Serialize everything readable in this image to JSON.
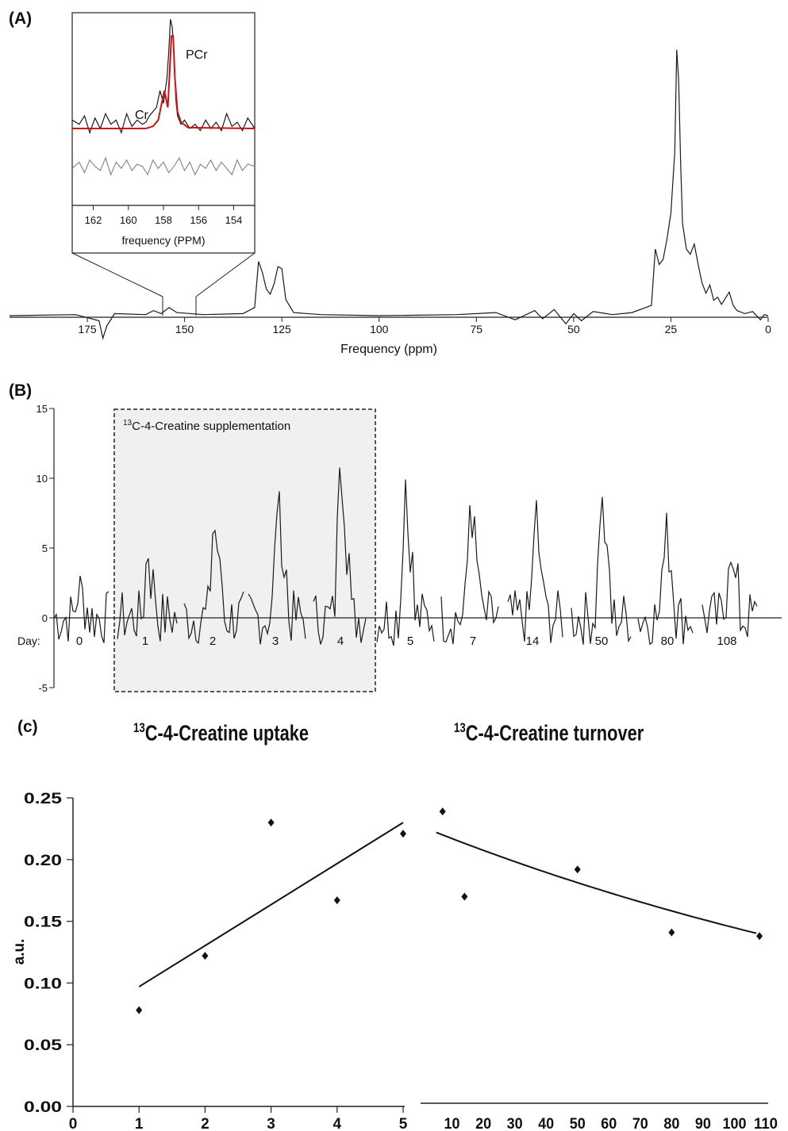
{
  "panels": {
    "a": {
      "label": "(A)"
    },
    "b": {
      "label": "(B)"
    },
    "c": {
      "label": "(c)"
    }
  },
  "colors": {
    "trace": "#1a1a1a",
    "fit": "#d01010",
    "residual": "#8a8a8a",
    "box_fill": "#f0f0f0"
  },
  "chart_data": [
    {
      "id": "A",
      "type": "line",
      "xlabel": "Frequency (ppm)",
      "x_ticks": [
        175,
        150,
        125,
        100,
        75,
        50,
        25,
        0
      ],
      "xlim": [
        195,
        0
      ],
      "x_reversed": true,
      "series": [
        {
          "x": [
            195,
            178,
            172,
            171,
            170,
            168,
            160,
            158,
            156,
            154,
            152,
            145,
            135,
            132,
            131,
            130,
            129,
            128,
            127,
            126,
            125,
            124,
            122,
            115,
            100,
            80,
            70,
            65,
            60,
            58,
            55,
            52,
            50,
            48,
            45,
            40,
            35,
            30,
            29,
            28,
            27,
            26,
            25,
            24,
            23.5,
            23,
            22.5,
            22,
            21,
            20,
            19,
            18,
            17,
            16,
            15,
            14,
            13,
            12,
            10,
            9,
            8,
            6,
            4,
            2,
            1,
            0
          ],
          "y": [
            0,
            0.1,
            -0.5,
            -2.2,
            -1,
            0.2,
            0.1,
            0.5,
            0.2,
            0.8,
            0.3,
            0.1,
            0.2,
            0.8,
            5.3,
            4.2,
            2.6,
            2.1,
            3.1,
            4.8,
            4.6,
            1.6,
            0.3,
            0.1,
            0,
            0.1,
            0.3,
            -0.4,
            0.5,
            -0.3,
            0.6,
            -0.8,
            0.2,
            -0.5,
            0.4,
            0.1,
            0.3,
            1,
            6.5,
            5,
            5.5,
            7.5,
            10,
            16,
            26,
            23,
            15,
            9,
            6.5,
            6,
            7,
            5,
            3.2,
            2.2,
            3,
            1.5,
            1.8,
            1.1,
            2.3,
            1,
            0.5,
            0.2,
            0.4,
            -0.4,
            0.1,
            0
          ]
        }
      ]
    },
    {
      "id": "A-inset",
      "type": "line",
      "xlabel": "frequency (PPM)",
      "x_ticks": [
        162,
        160,
        158,
        156,
        154
      ],
      "xlim": [
        163.2,
        152.8
      ],
      "x_reversed": true,
      "annotations": [
        "PCr",
        "Cr"
      ],
      "series": [
        {
          "role": "data",
          "x": [
            163.2,
            162.8,
            162.5,
            162.2,
            161.9,
            161.6,
            161.3,
            161,
            160.7,
            160.4,
            160.1,
            159.8,
            159.5,
            159.2,
            159,
            158.8,
            158.6,
            158.4,
            158.2,
            158,
            157.8,
            157.7,
            157.6,
            157.5,
            157.4,
            157.3,
            157.2,
            157,
            156.8,
            156.5,
            156.2,
            155.9,
            155.6,
            155.3,
            155,
            154.7,
            154.4,
            154.1,
            153.8,
            153.5,
            153.2,
            152.8
          ],
          "y": [
            2,
            1,
            3,
            -1,
            2.5,
            0,
            3.5,
            1,
            2,
            -1,
            3.5,
            0.5,
            2,
            1,
            1.5,
            3,
            4,
            5,
            9,
            6,
            12,
            18,
            26,
            24,
            18,
            7,
            3,
            1,
            2,
            0,
            1,
            -0.5,
            2,
            0,
            1.5,
            -0.5,
            3.5,
            0.5,
            1.5,
            -0.5,
            2.5,
            0
          ]
        },
        {
          "role": "fit",
          "x": [
            163.2,
            159,
            158.6,
            158.3,
            158.1,
            157.95,
            157.85,
            157.75,
            157.65,
            157.55,
            157.45,
            157.35,
            157.2,
            157,
            156.6,
            152.8
          ],
          "y": [
            0,
            0,
            0.5,
            2,
            6,
            9,
            7,
            5,
            13,
            22,
            22,
            12,
            4,
            1.5,
            0.2,
            0
          ]
        },
        {
          "role": "residual",
          "x": [
            163.2,
            162.8,
            162.5,
            162.2,
            161.9,
            161.6,
            161.3,
            161,
            160.7,
            160.4,
            160.1,
            159.8,
            159.5,
            159.2,
            158.9,
            158.6,
            158.3,
            158,
            157.7,
            157.4,
            157.1,
            156.8,
            156.5,
            156.2,
            155.9,
            155.6,
            155.3,
            155,
            154.7,
            154.4,
            154.1,
            153.8,
            153.5,
            153.2,
            152.8
          ],
          "y": [
            -9.5,
            -8,
            -10.5,
            -7.5,
            -9,
            -10,
            -7,
            -11,
            -8,
            -9.5,
            -7.5,
            -10,
            -8.5,
            -9,
            -11,
            -7.5,
            -9.5,
            -8,
            -10.5,
            -9,
            -7,
            -10,
            -8,
            -11,
            -8.5,
            -9.5,
            -7.5,
            -10,
            -8,
            -9.5,
            -11,
            -7.5,
            -10,
            -8.5,
            -9
          ]
        }
      ]
    },
    {
      "id": "B",
      "type": "line",
      "ylim": [
        -5,
        15
      ],
      "y_ticks": [
        15,
        10,
        5,
        0,
        -5
      ],
      "x_prefix": "Day:",
      "categories": [
        "0",
        "1",
        "2",
        "3",
        "4",
        "5",
        "7",
        "14",
        "50",
        "80",
        "108"
      ],
      "annotations": [
        "13C-4-Creatine supplementation"
      ],
      "peak_heights": [
        2.1,
        5,
        7,
        8.8,
        12.7,
        10,
        8.8,
        7.8,
        8.6,
        8,
        5.7
      ]
    },
    {
      "id": "C",
      "type": "scatter",
      "ylabel": "a.u.",
      "ylim": [
        0,
        0.25
      ],
      "y_ticks": [
        "0.00",
        "0.05",
        "0.10",
        "0.15",
        "0.20",
        "0.25"
      ],
      "titles": {
        "uptake": "C-4-Creatine uptake",
        "turnover": "C-4-Creatine turnover",
        "iso": "13"
      },
      "uptake": {
        "xlim": [
          0,
          5
        ],
        "x_ticks": [
          0,
          1,
          2,
          3,
          4,
          5
        ],
        "x": [
          1,
          2,
          3,
          4,
          5
        ],
        "y": [
          0.078,
          0.122,
          0.23,
          0.167,
          0.221
        ],
        "fit": [
          [
            1,
            0.097
          ],
          [
            5,
            0.23
          ]
        ]
      },
      "turnover": {
        "xlim": [
          0,
          110
        ],
        "x_ticks": [
          10,
          20,
          30,
          40,
          50,
          60,
          70,
          80,
          90,
          100,
          110
        ],
        "x": [
          7,
          14,
          50,
          80,
          108
        ],
        "y": [
          0.239,
          0.17,
          0.192,
          0.141,
          0.138
        ],
        "fit": {
          "x0": 5,
          "y0": 0.222,
          "rate": 0.0045
        }
      }
    }
  ]
}
